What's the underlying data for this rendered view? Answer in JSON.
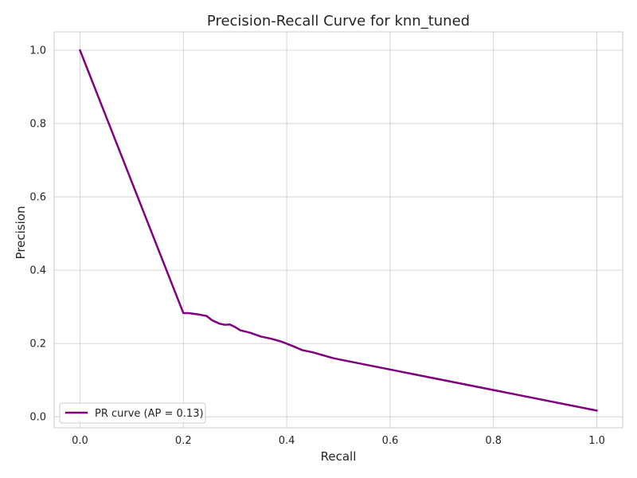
{
  "chart_data": {
    "type": "line",
    "title": "Precision-Recall Curve for knn_tuned",
    "xlabel": "Recall",
    "ylabel": "Precision",
    "xlim": [
      -0.05,
      1.05
    ],
    "ylim": [
      -0.03,
      1.05
    ],
    "xticks": [
      0.0,
      0.2,
      0.4,
      0.6,
      0.8,
      1.0
    ],
    "xtick_labels": [
      "0.0",
      "0.2",
      "0.4",
      "0.6",
      "0.8",
      "1.0"
    ],
    "yticks": [
      0.0,
      0.2,
      0.4,
      0.6,
      0.8,
      1.0
    ],
    "ytick_labels": [
      "0.0",
      "0.2",
      "0.4",
      "0.6",
      "0.8",
      "1.0"
    ],
    "grid": true,
    "legend_position": "lower-left",
    "series": [
      {
        "name": "PR curve (AP = 0.13)",
        "color": "#800080",
        "x": [
          0.0,
          0.2,
          0.21,
          0.23,
          0.245,
          0.255,
          0.27,
          0.28,
          0.29,
          0.3,
          0.31,
          0.33,
          0.35,
          0.37,
          0.39,
          0.41,
          0.43,
          0.45,
          0.47,
          0.49,
          0.5,
          1.0
        ],
        "y": [
          1.0,
          0.283,
          0.283,
          0.279,
          0.275,
          0.264,
          0.254,
          0.251,
          0.252,
          0.245,
          0.236,
          0.229,
          0.219,
          0.213,
          0.205,
          0.194,
          0.182,
          0.176,
          0.168,
          0.16,
          0.157,
          0.017
        ]
      }
    ]
  }
}
